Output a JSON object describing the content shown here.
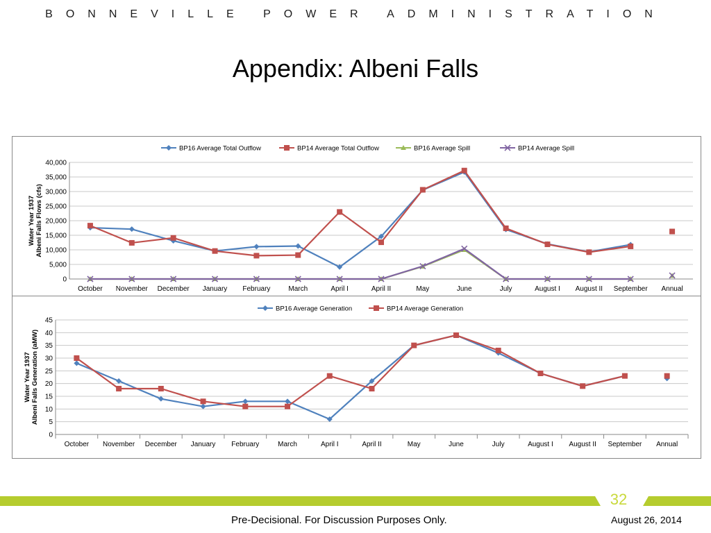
{
  "header": {
    "org": "BONNEVILLE POWER ADMINISTRATION"
  },
  "slide": {
    "title": "Appendix:  Albeni Falls"
  },
  "footer": {
    "page_number": "32",
    "note": "Pre-Decisional.  For Discussion Purposes Only.",
    "date": "August 26, 2014"
  },
  "colors": {
    "bp16": "#4f81bd",
    "bp14": "#c0504d",
    "bp16_spill": "#9bbb59",
    "bp14_spill": "#8064a2",
    "band": "#b5cc2e",
    "page_num": "#c9d93b"
  },
  "chart_data": [
    {
      "type": "line",
      "ylabel": "Water Year 1937\nAlbeni Falls Flows (cfs)",
      "ylim": [
        0,
        40000
      ],
      "yticks": [
        "0",
        "5,000",
        "10,000",
        "15,000",
        "20,000",
        "25,000",
        "30,000",
        "35,000",
        "40,000"
      ],
      "categories": [
        "October",
        "November",
        "December",
        "January",
        "February",
        "March",
        "April I",
        "April II",
        "May",
        "June",
        "July",
        "August I",
        "August II",
        "September",
        "Annual"
      ],
      "grid": true,
      "legend": "top",
      "series": [
        {
          "name": "BP16 Average Total Outflow",
          "marker": "diamond",
          "color": "#4f81bd",
          "values": [
            17600,
            17100,
            13100,
            9600,
            11100,
            11300,
            4100,
            14600,
            30500,
            36700,
            17000,
            12000,
            9300,
            11800,
            null
          ]
        },
        {
          "name": "BP14 Average Total Outflow",
          "marker": "square",
          "color": "#c0504d",
          "values": [
            18300,
            12400,
            14100,
            9600,
            8000,
            8200,
            23000,
            12600,
            30600,
            37200,
            17400,
            11900,
            9200,
            11200,
            16300
          ]
        },
        {
          "name": "BP16 Average Spill",
          "marker": "triangle",
          "color": "#9bbb59",
          "values": [
            0,
            0,
            0,
            0,
            0,
            0,
            0,
            0,
            4300,
            10000,
            0,
            0,
            0,
            0,
            1100
          ]
        },
        {
          "name": "BP14 Average Spill",
          "marker": "x",
          "color": "#8064a2",
          "values": [
            0,
            0,
            0,
            0,
            0,
            0,
            0,
            0,
            4400,
            10400,
            0,
            0,
            0,
            0,
            1200
          ]
        }
      ]
    },
    {
      "type": "line",
      "ylabel": "Water Year 1937\nAlbeni Falls Generation (aMW)",
      "ylim": [
        0,
        45
      ],
      "yticks": [
        "0",
        "5",
        "10",
        "15",
        "20",
        "25",
        "30",
        "35",
        "40",
        "45"
      ],
      "categories": [
        "October",
        "November",
        "December",
        "January",
        "February",
        "March",
        "April I",
        "April II",
        "May",
        "June",
        "July",
        "August I",
        "August II",
        "September",
        "Annual"
      ],
      "grid": true,
      "legend": "top",
      "series": [
        {
          "name": "BP16 Average Generation",
          "marker": "diamond",
          "color": "#4f81bd",
          "values": [
            28,
            21,
            14,
            11,
            13,
            13,
            6,
            21,
            35,
            39,
            32,
            24,
            19,
            23,
            22
          ]
        },
        {
          "name": "BP14 Average Generation",
          "marker": "square",
          "color": "#c0504d",
          "values": [
            30,
            18,
            18,
            13,
            11,
            11,
            23,
            18,
            35,
            39,
            33,
            24,
            19,
            23,
            23
          ]
        }
      ]
    }
  ]
}
